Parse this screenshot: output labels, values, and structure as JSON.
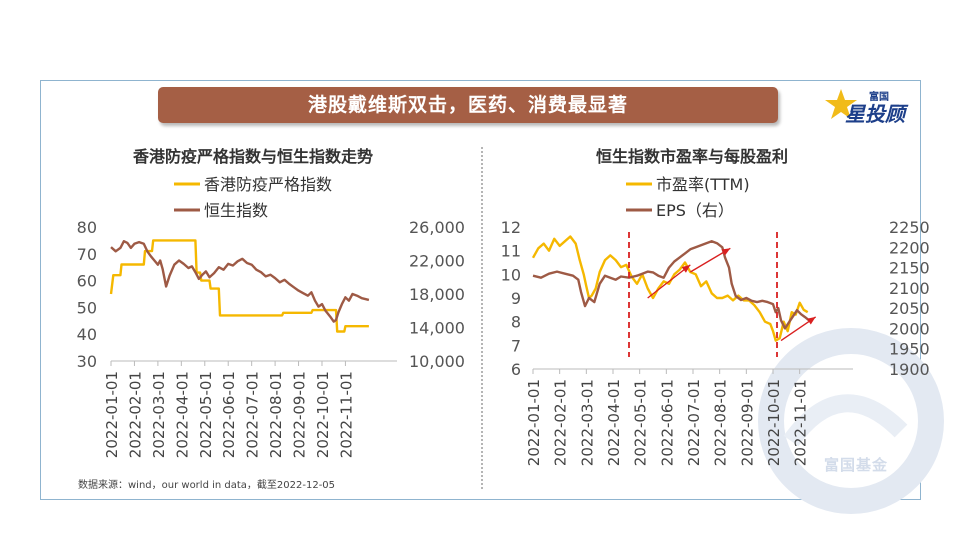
{
  "banner": {
    "title": "港股戴维斯双击，医药、消费最显著"
  },
  "logo": {
    "top_text": "富国",
    "main_text": "星投顾"
  },
  "watermark": {
    "text": "富国基金"
  },
  "source_note": "数据来源：wind，our world in data，截至2022-12-05",
  "colors": {
    "banner": "#a55f45",
    "series_orange": "#f5b800",
    "series_brown": "#9e5a45",
    "annotation_red": "#d92020"
  },
  "chart_data": [
    {
      "type": "line",
      "title": "香港防疫严格指数与恒生指数走势",
      "legend_position": "top",
      "x_ticks": [
        "2022-01-01",
        "2022-02-01",
        "2022-03-01",
        "2022-04-01",
        "2022-05-01",
        "2022-06-01",
        "2022-07-01",
        "2022-08-01",
        "2022-09-01",
        "2022-10-01",
        "2022-11-01"
      ],
      "x_range": [
        0,
        12.2
      ],
      "y_left": {
        "ticks": [
          "30",
          "40",
          "50",
          "60",
          "70",
          "80"
        ],
        "range": [
          30,
          80
        ]
      },
      "y_right": {
        "ticks": [
          "10,000",
          "14,000",
          "18,000",
          "22,000",
          "26,000"
        ],
        "range": [
          10000,
          26000
        ]
      },
      "grid": false,
      "series": [
        {
          "name": "香港防疫严格指数",
          "axis": "left",
          "color": "#f5b800",
          "points": [
            [
              0,
              55
            ],
            [
              0.1,
              62
            ],
            [
              0.4,
              62
            ],
            [
              0.45,
              66
            ],
            [
              1.4,
              66
            ],
            [
              1.45,
              71
            ],
            [
              1.75,
              71
            ],
            [
              1.8,
              75
            ],
            [
              3.6,
              75
            ],
            [
              3.65,
              63
            ],
            [
              3.8,
              63
            ],
            [
              3.85,
              60
            ],
            [
              4.2,
              60
            ],
            [
              4.25,
              57
            ],
            [
              4.6,
              57
            ],
            [
              4.65,
              47
            ],
            [
              7.3,
              47
            ],
            [
              7.35,
              48
            ],
            [
              8.55,
              48
            ],
            [
              8.6,
              49
            ],
            [
              9.6,
              49
            ],
            [
              9.65,
              41
            ],
            [
              9.95,
              41
            ],
            [
              10.0,
              43
            ],
            [
              11.0,
              43
            ]
          ]
        },
        {
          "name": "恒生指数",
          "axis": "right",
          "color": "#9e5a45",
          "points": [
            [
              0,
              23600
            ],
            [
              0.2,
              23100
            ],
            [
              0.4,
              23500
            ],
            [
              0.55,
              24300
            ],
            [
              0.7,
              24100
            ],
            [
              0.85,
              23500
            ],
            [
              1.0,
              24000
            ],
            [
              1.2,
              24200
            ],
            [
              1.4,
              24000
            ],
            [
              1.55,
              23100
            ],
            [
              1.7,
              22500
            ],
            [
              1.85,
              22000
            ],
            [
              2.0,
              21500
            ],
            [
              2.1,
              22000
            ],
            [
              2.2,
              21000
            ],
            [
              2.35,
              18900
            ],
            [
              2.5,
              20200
            ],
            [
              2.7,
              21500
            ],
            [
              2.9,
              22000
            ],
            [
              3.1,
              21600
            ],
            [
              3.3,
              21100
            ],
            [
              3.45,
              21300
            ],
            [
              3.6,
              20600
            ],
            [
              3.75,
              19800
            ],
            [
              3.9,
              20300
            ],
            [
              4.05,
              20700
            ],
            [
              4.2,
              20000
            ],
            [
              4.4,
              20500
            ],
            [
              4.6,
              21200
            ],
            [
              4.8,
              20900
            ],
            [
              5.0,
              21600
            ],
            [
              5.2,
              21400
            ],
            [
              5.4,
              21900
            ],
            [
              5.6,
              22200
            ],
            [
              5.8,
              21700
            ],
            [
              6.0,
              21500
            ],
            [
              6.2,
              20900
            ],
            [
              6.4,
              20600
            ],
            [
              6.6,
              20100
            ],
            [
              6.8,
              20300
            ],
            [
              7.0,
              19900
            ],
            [
              7.2,
              19400
            ],
            [
              7.4,
              19700
            ],
            [
              7.6,
              19200
            ],
            [
              7.8,
              18800
            ],
            [
              8.0,
              18400
            ],
            [
              8.2,
              18100
            ],
            [
              8.4,
              17800
            ],
            [
              8.55,
              18200
            ],
            [
              8.7,
              17200
            ],
            [
              8.85,
              16500
            ],
            [
              9.0,
              16800
            ],
            [
              9.15,
              16000
            ],
            [
              9.35,
              15300
            ],
            [
              9.5,
              14700
            ],
            [
              9.6,
              14900
            ],
            [
              9.7,
              15800
            ],
            [
              9.85,
              16800
            ],
            [
              10.0,
              17600
            ],
            [
              10.15,
              17200
            ],
            [
              10.3,
              18000
            ],
            [
              10.5,
              17800
            ],
            [
              10.7,
              17500
            ],
            [
              11.0,
              17300
            ]
          ]
        }
      ]
    },
    {
      "type": "line",
      "title": "恒生指数市盈率与每股盈利",
      "legend_position": "top",
      "x_ticks": [
        "2022-01-01",
        "2022-02-01",
        "2022-03-01",
        "2022-04-01",
        "2022-05-01",
        "2022-06-01",
        "2022-07-01",
        "2022-08-01",
        "2022-09-01",
        "2022-10-01",
        "2022-11-01"
      ],
      "x_range": [
        0,
        12.0
      ],
      "y_left": {
        "ticks": [
          "6",
          "7",
          "8",
          "9",
          "10",
          "11",
          "12"
        ],
        "range": [
          6,
          12
        ]
      },
      "y_right": {
        "ticks": [
          "1900",
          "1950",
          "2000",
          "2050",
          "2100",
          "2150",
          "2200",
          "2250"
        ],
        "range": [
          1900,
          2250
        ]
      },
      "grid": false,
      "series": [
        {
          "name": "市盈率(TTM)",
          "axis": "left",
          "color": "#f5b800",
          "points": [
            [
              0,
              10.7
            ],
            [
              0.2,
              11.1
            ],
            [
              0.4,
              11.3
            ],
            [
              0.6,
              11.0
            ],
            [
              0.8,
              11.5
            ],
            [
              1.0,
              11.2
            ],
            [
              1.2,
              11.4
            ],
            [
              1.4,
              11.6
            ],
            [
              1.6,
              11.3
            ],
            [
              1.75,
              10.6
            ],
            [
              1.9,
              10.0
            ],
            [
              2.0,
              9.5
            ],
            [
              2.1,
              9.0
            ],
            [
              2.2,
              9.1
            ],
            [
              2.35,
              9.4
            ],
            [
              2.5,
              10.1
            ],
            [
              2.7,
              10.6
            ],
            [
              2.9,
              10.8
            ],
            [
              3.1,
              10.6
            ],
            [
              3.3,
              10.3
            ],
            [
              3.5,
              10.4
            ],
            [
              3.7,
              9.9
            ],
            [
              3.9,
              9.6
            ],
            [
              4.1,
              10.0
            ],
            [
              4.3,
              9.4
            ],
            [
              4.5,
              9.0
            ],
            [
              4.7,
              9.4
            ],
            [
              4.9,
              9.7
            ],
            [
              5.1,
              9.6
            ],
            [
              5.3,
              10.0
            ],
            [
              5.5,
              10.2
            ],
            [
              5.7,
              10.5
            ],
            [
              5.9,
              10.1
            ],
            [
              6.1,
              10.0
            ],
            [
              6.3,
              9.5
            ],
            [
              6.5,
              9.7
            ],
            [
              6.7,
              9.2
            ],
            [
              6.9,
              9.0
            ],
            [
              7.1,
              9.0
            ],
            [
              7.3,
              9.1
            ],
            [
              7.5,
              8.9
            ],
            [
              7.7,
              9.1
            ],
            [
              7.9,
              8.9
            ],
            [
              8.1,
              8.9
            ],
            [
              8.3,
              8.7
            ],
            [
              8.5,
              8.4
            ],
            [
              8.7,
              8.0
            ],
            [
              8.9,
              7.9
            ],
            [
              9.0,
              7.6
            ],
            [
              9.1,
              7.2
            ],
            [
              9.25,
              7.3
            ],
            [
              9.4,
              8.0
            ],
            [
              9.55,
              7.6
            ],
            [
              9.7,
              8.4
            ],
            [
              9.85,
              8.3
            ],
            [
              10.0,
              8.8
            ],
            [
              10.15,
              8.5
            ],
            [
              10.3,
              8.4
            ]
          ]
        },
        {
          "name": "EPS（右）",
          "axis": "right",
          "color": "#9e5a45",
          "points": [
            [
              0,
              2130
            ],
            [
              0.3,
              2125
            ],
            [
              0.6,
              2135
            ],
            [
              0.9,
              2140
            ],
            [
              1.2,
              2135
            ],
            [
              1.5,
              2130
            ],
            [
              1.7,
              2120
            ],
            [
              1.8,
              2090
            ],
            [
              1.95,
              2055
            ],
            [
              2.1,
              2075
            ],
            [
              2.3,
              2065
            ],
            [
              2.5,
              2110
            ],
            [
              2.7,
              2130
            ],
            [
              2.9,
              2125
            ],
            [
              3.1,
              2120
            ],
            [
              3.3,
              2128
            ],
            [
              3.6,
              2125
            ],
            [
              3.9,
              2130
            ],
            [
              4.1,
              2135
            ],
            [
              4.3,
              2140
            ],
            [
              4.5,
              2138
            ],
            [
              4.7,
              2130
            ],
            [
              4.9,
              2125
            ],
            [
              5.1,
              2150
            ],
            [
              5.3,
              2165
            ],
            [
              5.5,
              2175
            ],
            [
              5.7,
              2185
            ],
            [
              5.9,
              2195
            ],
            [
              6.1,
              2200
            ],
            [
              6.3,
              2205
            ],
            [
              6.5,
              2210
            ],
            [
              6.7,
              2215
            ],
            [
              6.9,
              2210
            ],
            [
              7.1,
              2200
            ],
            [
              7.2,
              2175
            ],
            [
              7.35,
              2150
            ],
            [
              7.45,
              2110
            ],
            [
              7.6,
              2080
            ],
            [
              7.8,
              2070
            ],
            [
              8.0,
              2075
            ],
            [
              8.2,
              2068
            ],
            [
              8.4,
              2065
            ],
            [
              8.6,
              2068
            ],
            [
              8.8,
              2065
            ],
            [
              9.0,
              2060
            ],
            [
              9.1,
              2040
            ],
            [
              9.2,
              2050
            ],
            [
              9.3,
              2020
            ],
            [
              9.45,
              2000
            ],
            [
              9.6,
              2015
            ],
            [
              9.75,
              2030
            ],
            [
              9.9,
              2045
            ],
            [
              10.05,
              2035
            ],
            [
              10.2,
              2028
            ],
            [
              10.35,
              2020
            ]
          ]
        }
      ],
      "annotations": {
        "dashed_markers_x": [
          3.6,
          9.15
        ],
        "arrows": [
          [
            [
              4.3,
              9.0
            ],
            [
              5.9,
              10.4
            ]
          ],
          [
            [
              5.9,
              10.1
            ],
            [
              7.4,
              11.1
            ]
          ],
          [
            [
              9.3,
              7.2
            ],
            [
              10.6,
              8.2
            ]
          ]
        ]
      }
    }
  ]
}
